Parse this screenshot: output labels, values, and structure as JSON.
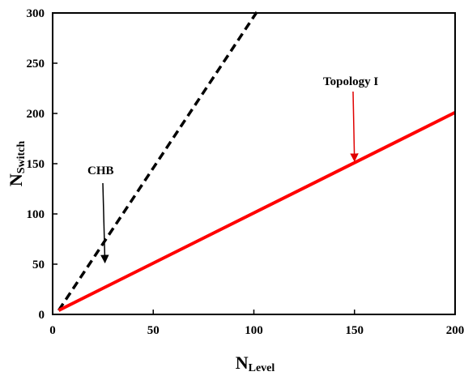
{
  "chart_data": {
    "type": "line",
    "xlabel": {
      "main": "N",
      "sub": "Level"
    },
    "ylabel": {
      "main": "N",
      "sub": "Switch"
    },
    "xlim": [
      0,
      200
    ],
    "ylim": [
      0,
      300
    ],
    "x_ticks": [
      0,
      50,
      100,
      150,
      200
    ],
    "y_ticks": [
      0,
      50,
      100,
      150,
      200,
      250,
      300
    ],
    "grid": false,
    "legend": "none",
    "series": [
      {
        "name": "CHB",
        "style": "dashed",
        "color": "#000000",
        "x": [
          3,
          101.5
        ],
        "y": [
          4,
          301
        ]
      },
      {
        "name": "Topology I",
        "style": "solid",
        "color": "#ff0000",
        "x": [
          3,
          200
        ],
        "y": [
          4,
          201
        ]
      }
    ],
    "annotations": [
      {
        "text": "CHB",
        "series": "CHB",
        "arrow_to": [
          26,
          50
        ]
      },
      {
        "text": "Topology I",
        "series": "Topology I",
        "arrow_to": [
          150,
          151
        ]
      }
    ]
  }
}
